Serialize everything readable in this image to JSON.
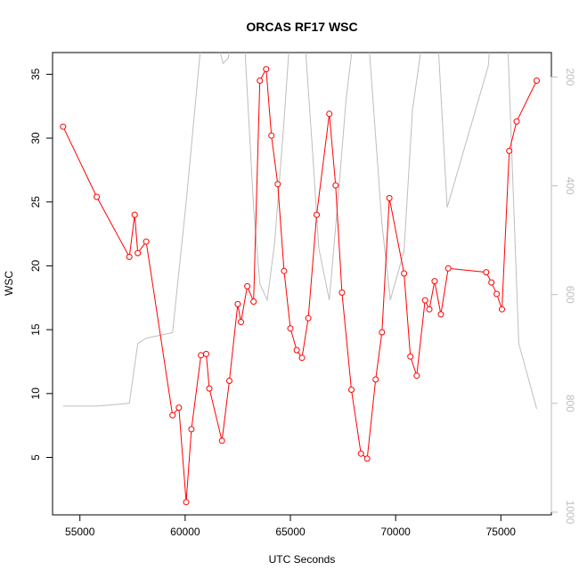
{
  "chart_data": {
    "type": "line",
    "title": "ORCAS RF17 WSC",
    "xlabel": "UTC Seconds",
    "ylabel": "WSC",
    "xlim": [
      53700,
      77400
    ],
    "ylim": [
      0.5,
      36.7
    ],
    "x_ticks": [
      55000,
      60000,
      65000,
      70000,
      75000
    ],
    "y_ticks": [
      5,
      10,
      15,
      20,
      25,
      30,
      35
    ],
    "secondary_axis": {
      "side": "right",
      "ticks": [
        200,
        400,
        600,
        800,
        1000
      ],
      "ylim_inverted": [
        1005,
        155
      ],
      "color": "#bebebe"
    },
    "grid": false,
    "series": [
      {
        "color": "#ff0000",
        "marker": "open-circle",
        "axis": "left",
        "points": [
          [
            54200,
            30.9
          ],
          [
            55800,
            25.4
          ],
          [
            57350,
            20.7
          ],
          [
            57600,
            24.0
          ],
          [
            57750,
            21.0
          ],
          [
            58150,
            21.9
          ],
          [
            59400,
            8.3
          ],
          [
            59700,
            8.9
          ],
          [
            60050,
            1.5
          ],
          [
            60300,
            7.2
          ],
          [
            60750,
            13.0
          ],
          [
            61000,
            13.1
          ],
          [
            61150,
            10.4
          ],
          [
            61750,
            6.3
          ],
          [
            62100,
            11.0
          ],
          [
            62500,
            17.0
          ],
          [
            62650,
            15.6
          ],
          [
            62950,
            18.4
          ],
          [
            63250,
            17.2
          ],
          [
            63550,
            34.5
          ],
          [
            63850,
            35.4
          ],
          [
            64100,
            30.2
          ],
          [
            64400,
            26.4
          ],
          [
            64700,
            19.6
          ],
          [
            65000,
            15.1
          ],
          [
            65300,
            13.4
          ],
          [
            65550,
            12.8
          ],
          [
            65850,
            15.9
          ],
          [
            66250,
            24.0
          ],
          [
            66850,
            31.9
          ],
          [
            67150,
            26.3
          ],
          [
            67450,
            17.9
          ],
          [
            67900,
            10.3
          ],
          [
            68350,
            5.3
          ],
          [
            68650,
            4.9
          ],
          [
            69050,
            11.1
          ],
          [
            69350,
            14.8
          ],
          [
            69700,
            25.3
          ],
          [
            70400,
            19.4
          ],
          [
            70700,
            12.9
          ],
          [
            71000,
            11.4
          ],
          [
            71400,
            17.3
          ],
          [
            71600,
            16.6
          ],
          [
            71850,
            18.8
          ],
          [
            72150,
            16.2
          ],
          [
            72500,
            19.8
          ],
          [
            74300,
            19.5
          ],
          [
            74550,
            18.7
          ],
          [
            74800,
            17.8
          ],
          [
            75050,
            16.6
          ],
          [
            75400,
            29.0
          ],
          [
            75750,
            31.3
          ],
          [
            76700,
            34.5
          ]
        ]
      },
      {
        "color": "#bebebe",
        "marker": "none",
        "axis": "right",
        "points": [
          [
            54200,
            805
          ],
          [
            55800,
            805
          ],
          [
            57350,
            800
          ],
          [
            57600,
            730
          ],
          [
            57750,
            690
          ],
          [
            58150,
            680
          ],
          [
            59400,
            670
          ],
          [
            60050,
            430
          ],
          [
            60700,
            160
          ],
          [
            61050,
            60
          ],
          [
            61800,
            175
          ],
          [
            62050,
            165
          ],
          [
            62350,
            80
          ],
          [
            62800,
            120
          ],
          [
            63250,
            440
          ],
          [
            63550,
            580
          ],
          [
            63900,
            610
          ],
          [
            64250,
            505
          ],
          [
            64700,
            280
          ],
          [
            64950,
            140
          ],
          [
            65300,
            60
          ],
          [
            65650,
            110
          ],
          [
            66050,
            335
          ],
          [
            66350,
            515
          ],
          [
            66850,
            610
          ],
          [
            67250,
            430
          ],
          [
            67650,
            240
          ],
          [
            68050,
            110
          ],
          [
            68650,
            95
          ],
          [
            69350,
            470
          ],
          [
            69750,
            610
          ],
          [
            70400,
            520
          ],
          [
            70800,
            260
          ],
          [
            71500,
            70
          ],
          [
            72000,
            125
          ],
          [
            72450,
            440
          ],
          [
            74400,
            180
          ],
          [
            74650,
            60
          ],
          [
            75300,
            110
          ],
          [
            75850,
            690
          ],
          [
            76700,
            810
          ]
        ]
      }
    ]
  }
}
